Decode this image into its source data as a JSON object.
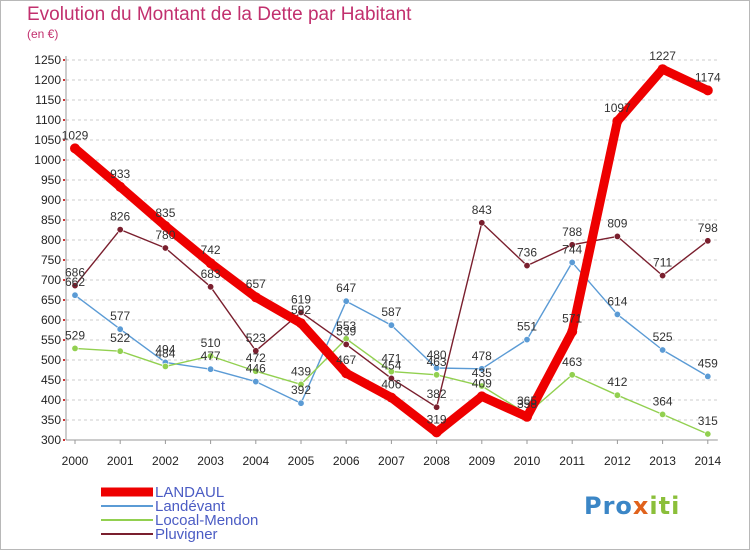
{
  "page": {
    "title": "Evolution du Montant de la Dette par Habitant",
    "subtitle": "(en €)",
    "logo": "Proxiti"
  },
  "colors": {
    "title": "#c2306e",
    "grid": "#cccccc",
    "legend_text": "#4b5cc4"
  },
  "chart_data": {
    "type": "line",
    "title": "Evolution du Montant de la Dette par Habitant",
    "subtitle": "(en €)",
    "xlabel": "",
    "ylabel": "",
    "x": [
      "2000",
      "2001",
      "2002",
      "2003",
      "2004",
      "2005",
      "2006",
      "2007",
      "2008",
      "2009",
      "2010",
      "2011",
      "2012",
      "2013",
      "2014"
    ],
    "ylim": [
      300,
      1250
    ],
    "yticks": [
      300,
      350,
      400,
      450,
      500,
      550,
      600,
      650,
      700,
      750,
      800,
      850,
      900,
      950,
      1000,
      1050,
      1100,
      1150,
      1200,
      1250
    ],
    "grid": "horizontal dashed",
    "legend_position": "bottom-left",
    "series": [
      {
        "name": "Landévant",
        "color": "#5b9bd5",
        "values": [
          662,
          577,
          494,
          477,
          446,
          392,
          647,
          587,
          480,
          478,
          551,
          744,
          614,
          525,
          459
        ],
        "labels": [
          "662",
          "577",
          "494",
          "477",
          "446",
          "392",
          "647",
          "587",
          "480",
          "478",
          "551",
          "744",
          "614",
          "525",
          "459"
        ]
      },
      {
        "name": "Locoal-Mendon",
        "color": "#92d050",
        "values": [
          529,
          522,
          484,
          510,
          472,
          439,
          553,
          471,
          463,
          435,
          365,
          463,
          412,
          364,
          315
        ],
        "labels": [
          "529",
          "522",
          "484",
          "510",
          "472",
          "439",
          "553",
          "471",
          "463",
          "435",
          "365",
          "463",
          "412",
          "364",
          "315"
        ]
      },
      {
        "name": "Pluvigner",
        "color": "#7a1f2e",
        "values": [
          686,
          826,
          780,
          683,
          523,
          619,
          539,
          454,
          382,
          843,
          736,
          788,
          809,
          711,
          798
        ],
        "labels": [
          "686",
          "826",
          "780",
          "683",
          "523",
          "619",
          "539",
          "454",
          "382",
          "843",
          "736",
          "788",
          "809",
          "711",
          "798"
        ]
      },
      {
        "name": "LANDAUL",
        "color": "#ee0000",
        "values": [
          1029,
          933,
          835,
          742,
          657,
          592,
          467,
          406,
          319,
          409,
          358,
          571,
          1097,
          1227,
          1174
        ],
        "labels": [
          "1029",
          "933",
          "835",
          "742",
          "657",
          "592",
          "467",
          "406",
          "319",
          "409",
          "358",
          "571",
          "1097",
          "1227",
          "1174"
        ]
      }
    ],
    "legend_order": [
      "LANDAUL",
      "Landévant",
      "Locoal-Mendon",
      "Pluvigner"
    ]
  }
}
